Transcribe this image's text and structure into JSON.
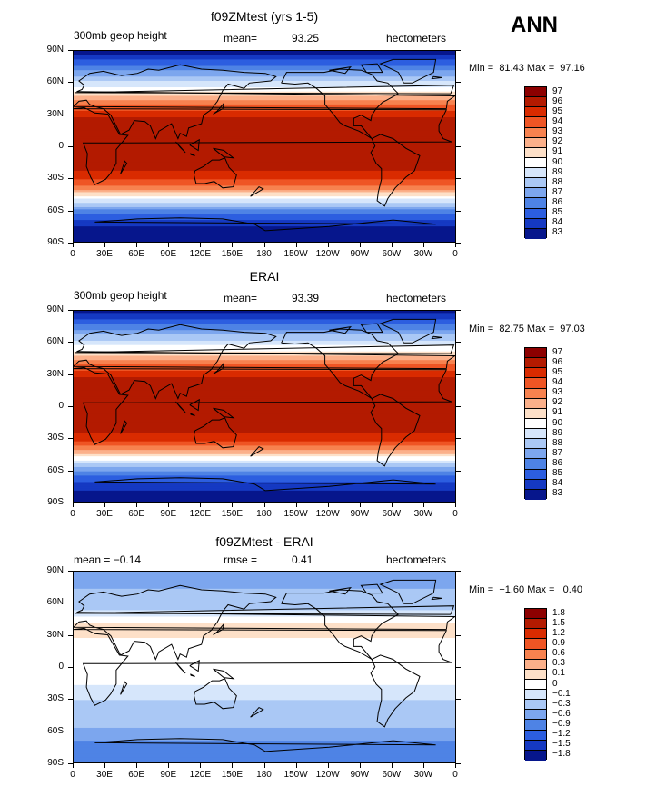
{
  "season": "ANN",
  "chart_data": [
    {
      "type": "heatmap",
      "title": "f09ZMtest (yrs 1-5)",
      "left_label": "300mb geop height",
      "stat_label": "mean=",
      "stat_value": "93.25",
      "units": "hectometers",
      "minmax_text": "Min =  81.43 Max =  97.16",
      "lat_ticks": [
        "90N",
        "60N",
        "30N",
        "0",
        "30S",
        "60S",
        "90S"
      ],
      "lon_ticks": [
        "0",
        "30E",
        "60E",
        "90E",
        "120E",
        "150E",
        "180",
        "150W",
        "120W",
        "90W",
        "60W",
        "30W",
        "0"
      ],
      "levels": [
        "97",
        "96",
        "95",
        "94",
        "93",
        "92",
        "91",
        "90",
        "89",
        "88",
        "87",
        "86",
        "85",
        "84",
        "83"
      ],
      "colors": [
        "#8c0000",
        "#b31a00",
        "#d92b00",
        "#ef5524",
        "#f7824f",
        "#fbb08a",
        "#fde0c8",
        "#ffffff",
        "#d6e6fb",
        "#aac8f5",
        "#7ca6ee",
        "#4e83e5",
        "#2c5ee0",
        "#1539c2",
        "#06168c"
      ],
      "zonal_profile": [
        {
          "lat": 90,
          "value": 83.4
        },
        {
          "lat": 80,
          "value": 85.2
        },
        {
          "lat": 70,
          "value": 87.3
        },
        {
          "lat": 60,
          "value": 89.3
        },
        {
          "lat": 50,
          "value": 91.5
        },
        {
          "lat": 40,
          "value": 94.0
        },
        {
          "lat": 30,
          "value": 95.8
        },
        {
          "lat": 20,
          "value": 96.5
        },
        {
          "lat": 10,
          "value": 96.8
        },
        {
          "lat": 0,
          "value": 96.7
        },
        {
          "lat": -10,
          "value": 96.7
        },
        {
          "lat": -20,
          "value": 96.3
        },
        {
          "lat": -30,
          "value": 95.2
        },
        {
          "lat": -40,
          "value": 92.8
        },
        {
          "lat": -50,
          "value": 89.6
        },
        {
          "lat": -60,
          "value": 86.6
        },
        {
          "lat": -70,
          "value": 84.5
        },
        {
          "lat": -80,
          "value": 83.2
        },
        {
          "lat": -90,
          "value": 82.5
        }
      ]
    },
    {
      "type": "heatmap",
      "title": "ERAI",
      "left_label": "300mb geop height",
      "stat_label": "mean=",
      "stat_value": "93.39",
      "units": "hectometers",
      "minmax_text": "Min =  82.75 Max =  97.03",
      "lat_ticks": [
        "90N",
        "60N",
        "30N",
        "0",
        "30S",
        "60S",
        "90S"
      ],
      "lon_ticks": [
        "0",
        "30E",
        "60E",
        "90E",
        "120E",
        "150E",
        "180",
        "150W",
        "120W",
        "90W",
        "60W",
        "30W",
        "0"
      ],
      "levels": [
        "97",
        "96",
        "95",
        "94",
        "93",
        "92",
        "91",
        "90",
        "89",
        "88",
        "87",
        "86",
        "85",
        "84",
        "83"
      ],
      "colors": [
        "#8c0000",
        "#b31a00",
        "#d92b00",
        "#ef5524",
        "#f7824f",
        "#fbb08a",
        "#fde0c8",
        "#ffffff",
        "#d6e6fb",
        "#aac8f5",
        "#7ca6ee",
        "#4e83e5",
        "#2c5ee0",
        "#1539c2",
        "#06168c"
      ],
      "zonal_profile": [
        {
          "lat": 90,
          "value": 83.6
        },
        {
          "lat": 80,
          "value": 85.4
        },
        {
          "lat": 70,
          "value": 87.4
        },
        {
          "lat": 60,
          "value": 89.4
        },
        {
          "lat": 50,
          "value": 91.6
        },
        {
          "lat": 40,
          "value": 94.0
        },
        {
          "lat": 30,
          "value": 95.8
        },
        {
          "lat": 20,
          "value": 96.5
        },
        {
          "lat": 10,
          "value": 96.6
        },
        {
          "lat": 0,
          "value": 96.6
        },
        {
          "lat": -10,
          "value": 96.6
        },
        {
          "lat": -20,
          "value": 96.3
        },
        {
          "lat": -30,
          "value": 95.3
        },
        {
          "lat": -40,
          "value": 93.0
        },
        {
          "lat": -50,
          "value": 89.8
        },
        {
          "lat": -60,
          "value": 86.8
        },
        {
          "lat": -70,
          "value": 85.0
        },
        {
          "lat": -80,
          "value": 83.8
        },
        {
          "lat": -90,
          "value": 83.2
        }
      ]
    },
    {
      "type": "heatmap",
      "title": "f09ZMtest - ERAI",
      "left_label": "mean =    −0.14",
      "stat_label": "rmse =",
      "stat_value": "0.41",
      "units": "hectometers",
      "minmax_text": "Min =  −1.60 Max =   0.40",
      "lat_ticks": [
        "90N",
        "60N",
        "30N",
        "0",
        "30S",
        "60S",
        "90S"
      ],
      "lon_ticks": [
        "0",
        "30E",
        "60E",
        "90E",
        "120E",
        "150E",
        "180",
        "150W",
        "120W",
        "90W",
        "60W",
        "30W",
        "0"
      ],
      "levels": [
        "1.8",
        "1.5",
        "1.2",
        "0.9",
        "0.6",
        "0.3",
        "0.1",
        "0",
        "−0.1",
        "−0.3",
        "−0.6",
        "−0.9",
        "−1.2",
        "−1.5",
        "−1.8"
      ],
      "colors": [
        "#8c0000",
        "#b31a00",
        "#d92b00",
        "#ef5524",
        "#f7824f",
        "#fbb08a",
        "#fde0c8",
        "#ffffff",
        "#d6e6fb",
        "#aac8f5",
        "#7ca6ee",
        "#4e83e5",
        "#2c5ee0",
        "#1539c2",
        "#06168c"
      ],
      "zonal_profile": [
        {
          "lat": 90,
          "value": -0.5
        },
        {
          "lat": 80,
          "value": -0.4
        },
        {
          "lat": 70,
          "value": -0.25
        },
        {
          "lat": 60,
          "value": -0.2
        },
        {
          "lat": 50,
          "value": -0.05
        },
        {
          "lat": 40,
          "value": 0.15
        },
        {
          "lat": 30,
          "value": 0.12
        },
        {
          "lat": 20,
          "value": 0.05
        },
        {
          "lat": 10,
          "value": 0.02
        },
        {
          "lat": 0,
          "value": 0.03
        },
        {
          "lat": -10,
          "value": 0.02
        },
        {
          "lat": -20,
          "value": -0.02
        },
        {
          "lat": -30,
          "value": -0.1
        },
        {
          "lat": -40,
          "value": -0.3
        },
        {
          "lat": -50,
          "value": -0.25
        },
        {
          "lat": -60,
          "value": -0.35
        },
        {
          "lat": -70,
          "value": -0.7
        },
        {
          "lat": -80,
          "value": -0.9
        },
        {
          "lat": -90,
          "value": -0.7
        }
      ]
    }
  ]
}
